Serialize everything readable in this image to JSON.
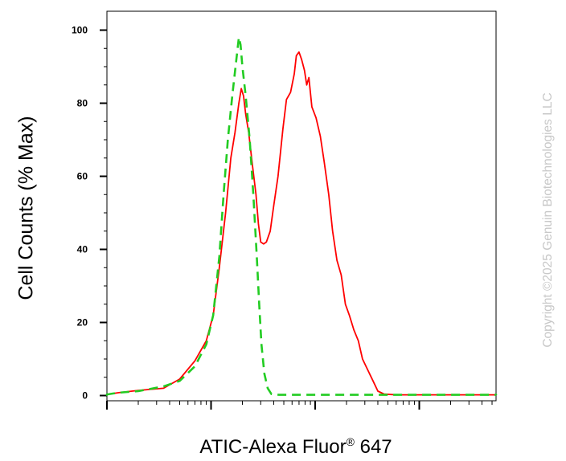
{
  "chart_data": {
    "type": "line",
    "title": "",
    "xlabel": "ATIC-Alexa Fluor",
    "xlabel_sup": "®",
    "xlabel_suffix": " 647",
    "ylabel": "Cell Counts (% Max)",
    "x_scale": "log",
    "ylim": [
      0,
      100
    ],
    "y_ticks": [
      0,
      20,
      40,
      60,
      80,
      100
    ],
    "grid": false,
    "legend": "none",
    "series": [
      {
        "color": "#ff0000",
        "style": "solid",
        "points": [
          [
            0.01,
            0.3
          ],
          [
            0.03,
            0.2
          ],
          [
            0.08,
            0.3
          ],
          [
            0.13,
            0.8
          ],
          [
            0.2,
            1.4
          ],
          [
            0.35,
            2.0
          ],
          [
            0.5,
            4.5
          ],
          [
            0.7,
            9.5
          ],
          [
            0.9,
            15
          ],
          [
            1.05,
            22
          ],
          [
            1.2,
            35
          ],
          [
            1.38,
            50
          ],
          [
            1.55,
            65
          ],
          [
            1.7,
            72
          ],
          [
            1.85,
            80
          ],
          [
            1.95,
            84
          ],
          [
            2.05,
            82
          ],
          [
            2.15,
            77
          ],
          [
            2.3,
            72
          ],
          [
            2.5,
            63
          ],
          [
            2.7,
            55
          ],
          [
            2.85,
            47
          ],
          [
            3.0,
            42
          ],
          [
            3.2,
            41.5
          ],
          [
            3.4,
            42
          ],
          [
            3.7,
            45
          ],
          [
            4.0,
            52
          ],
          [
            4.4,
            60
          ],
          [
            4.9,
            73
          ],
          [
            5.3,
            81
          ],
          [
            5.8,
            83
          ],
          [
            6.3,
            88
          ],
          [
            6.6,
            93
          ],
          [
            7.0,
            94
          ],
          [
            7.4,
            92
          ],
          [
            7.9,
            89
          ],
          [
            8.3,
            85
          ],
          [
            8.7,
            87
          ],
          [
            9.3,
            79
          ],
          [
            10.2,
            76
          ],
          [
            11.2,
            71
          ],
          [
            12.2,
            64
          ],
          [
            13.5,
            55
          ],
          [
            14.7,
            45
          ],
          [
            16.2,
            37
          ],
          [
            17.8,
            33
          ],
          [
            19.5,
            25
          ],
          [
            21.3,
            22
          ],
          [
            23.5,
            18
          ],
          [
            26.0,
            15
          ],
          [
            28.5,
            10
          ],
          [
            32,
            7
          ],
          [
            36,
            4
          ],
          [
            40,
            1.2
          ],
          [
            46,
            0.4
          ],
          [
            60,
            0.2
          ],
          [
            120,
            0.2
          ],
          [
            300,
            0.2
          ],
          [
            1000,
            0.2
          ],
          [
            2500,
            0.1
          ]
        ]
      },
      {
        "color": "#22cc22",
        "style": "dashed",
        "points": [
          [
            0.01,
            0.3
          ],
          [
            0.03,
            0.2
          ],
          [
            0.08,
            0.3
          ],
          [
            0.13,
            0.8
          ],
          [
            0.2,
            1.2
          ],
          [
            0.35,
            2.5
          ],
          [
            0.5,
            4.0
          ],
          [
            0.7,
            8
          ],
          [
            0.9,
            14
          ],
          [
            1.05,
            22
          ],
          [
            1.2,
            38
          ],
          [
            1.32,
            55
          ],
          [
            1.45,
            70
          ],
          [
            1.6,
            82
          ],
          [
            1.75,
            92
          ],
          [
            1.85,
            98
          ],
          [
            1.92,
            96
          ],
          [
            2.0,
            90
          ],
          [
            2.15,
            82
          ],
          [
            2.35,
            70
          ],
          [
            2.55,
            55
          ],
          [
            2.75,
            38
          ],
          [
            2.9,
            25
          ],
          [
            3.05,
            14
          ],
          [
            3.25,
            6
          ],
          [
            3.5,
            2
          ],
          [
            3.8,
            0.4
          ],
          [
            4.5,
            0.2
          ],
          [
            6,
            0.2
          ],
          [
            10,
            0.2
          ],
          [
            30,
            0.2
          ],
          [
            100,
            0.2
          ],
          [
            1000,
            0.2
          ],
          [
            2500,
            0.1
          ]
        ]
      }
    ]
  },
  "watermark": "Copyright ©2025 Genuin Biotechnologies LLC"
}
